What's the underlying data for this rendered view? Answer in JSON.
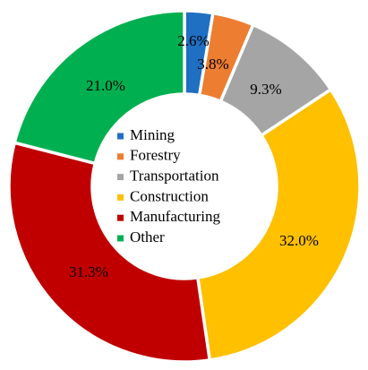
{
  "chart_data": {
    "type": "pie",
    "variant": "doughnut",
    "categories": [
      "Mining",
      "Forestry",
      "Transportation",
      "Construction",
      "Manufacturing",
      "Other"
    ],
    "values": [
      2.6,
      3.8,
      9.3,
      32.0,
      31.3,
      21.0
    ],
    "labels": [
      "2.6%",
      "3.8%",
      "9.3%",
      "32.0%",
      "31.3%",
      "21.0%"
    ],
    "colors": [
      "#1f6fc2",
      "#ed7d31",
      "#a5a5a5",
      "#ffc000",
      "#c00000",
      "#00b050"
    ],
    "legend_placement": "center",
    "title": ""
  }
}
